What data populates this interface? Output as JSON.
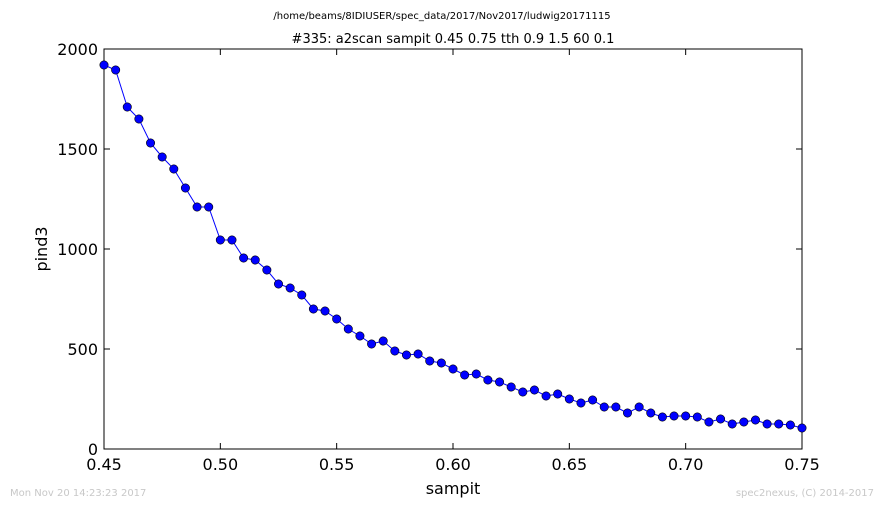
{
  "chart_data": {
    "type": "line",
    "path": "/home/beams/8IDIUSER/spec_data/2017/Nov2017/ludwig20171115",
    "title": "#335: a2scan  sampit 0.45 0.75  tth 0.9 1.5  60 0.1",
    "xlabel": "sampit",
    "ylabel": "pind3",
    "xlim": [
      0.45,
      0.75
    ],
    "ylim": [
      0,
      2000
    ],
    "xticks": [
      0.45,
      0.5,
      0.55,
      0.6,
      0.65,
      0.7,
      0.75
    ],
    "xtick_labels": [
      "0.45",
      "0.50",
      "0.55",
      "0.60",
      "0.65",
      "0.70",
      "0.75"
    ],
    "yticks": [
      0,
      500,
      1000,
      1500,
      2000
    ],
    "ytick_labels": [
      "0",
      "500",
      "1000",
      "1500",
      "2000"
    ],
    "grid": false,
    "series_color": "#0000ff",
    "x": [
      0.45,
      0.455,
      0.46,
      0.465,
      0.47,
      0.475,
      0.48,
      0.485,
      0.49,
      0.495,
      0.5,
      0.505,
      0.51,
      0.515,
      0.52,
      0.525,
      0.53,
      0.535,
      0.54,
      0.545,
      0.55,
      0.555,
      0.56,
      0.565,
      0.57,
      0.575,
      0.58,
      0.585,
      0.59,
      0.595,
      0.6,
      0.605,
      0.61,
      0.615,
      0.62,
      0.625,
      0.63,
      0.635,
      0.64,
      0.645,
      0.65,
      0.655,
      0.66,
      0.665,
      0.67,
      0.675,
      0.68,
      0.685,
      0.69,
      0.695,
      0.7,
      0.705,
      0.71,
      0.715,
      0.72,
      0.725,
      0.73,
      0.735,
      0.74,
      0.745,
      0.75
    ],
    "y": [
      1920,
      1895,
      1710,
      1650,
      1530,
      1460,
      1400,
      1305,
      1210,
      1210,
      1045,
      1045,
      955,
      945,
      895,
      825,
      805,
      770,
      700,
      690,
      650,
      600,
      565,
      525,
      540,
      490,
      470,
      475,
      440,
      430,
      400,
      370,
      375,
      345,
      335,
      310,
      285,
      295,
      265,
      275,
      250,
      230,
      245,
      210,
      210,
      180,
      210,
      180,
      160,
      165,
      165,
      160,
      135,
      150,
      125,
      135,
      145,
      125,
      125,
      120,
      105
    ]
  },
  "footer": {
    "timestamp": "Mon Nov 20 14:23:23 2017",
    "credit": "spec2nexus, (C) 2014-2017"
  }
}
